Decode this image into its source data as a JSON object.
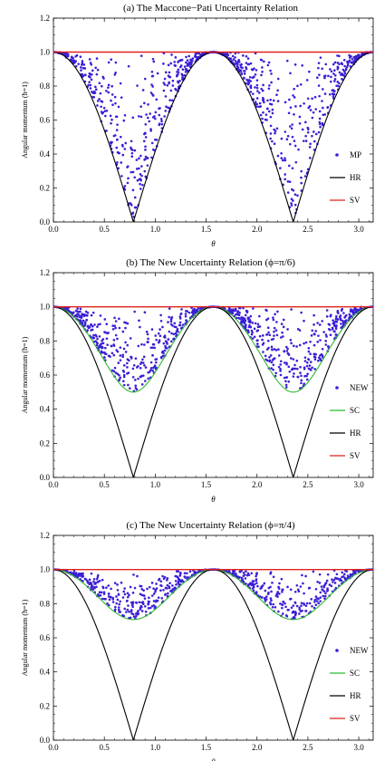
{
  "chart_data": [
    {
      "type": "scatter",
      "title": "(a) The Maccone−Pati Uncertainty Relation",
      "xlabel": "θ",
      "ylabel": "Angular momentum  (ħ=1)",
      "xlim": [
        0,
        3.1416
      ],
      "ylim": [
        0,
        1.2
      ],
      "x_ticks": [
        0.0,
        0.5,
        1.0,
        1.5,
        2.0,
        2.5,
        3.0
      ],
      "x_tick_labels": [
        "0.0",
        "0.5",
        "1.0",
        "1.5",
        "2.0",
        "2.5",
        "3.0"
      ],
      "y_ticks": [
        0.0,
        0.2,
        0.4,
        0.6,
        0.8,
        1.0,
        1.2
      ],
      "y_tick_labels": [
        "0.0",
        "0.2",
        "0.4",
        "0.6",
        "0.8",
        "1.0",
        "1.2"
      ],
      "legend_position": "bottom-right",
      "series": [
        {
          "name": "MP",
          "kind": "scatter",
          "color": "#3b1fd6",
          "lower_bound": "|cos 2θ|",
          "upper_bound": 1.0,
          "points_shown": 900
        },
        {
          "name": "HR",
          "kind": "line",
          "color": "#000000",
          "formula": "|cos 2θ|",
          "sample_points": [
            [
              0.0,
              1.0
            ],
            [
              0.393,
              0.707
            ],
            [
              0.785,
              0.0
            ],
            [
              1.178,
              0.707
            ],
            [
              1.571,
              1.0
            ],
            [
              1.963,
              0.707
            ],
            [
              2.356,
              0.0
            ],
            [
              2.749,
              0.707
            ],
            [
              3.142,
              1.0
            ]
          ]
        },
        {
          "name": "SV",
          "kind": "line",
          "color": "#e0201c",
          "formula": "1",
          "sample_points": [
            [
              0.0,
              1.0
            ],
            [
              3.142,
              1.0
            ]
          ]
        }
      ]
    },
    {
      "type": "scatter",
      "title": "(b) The New Uncertainty Relation (ϕ=π/6)",
      "xlabel": "θ",
      "ylabel": "Angular momentum  (ħ=1)",
      "xlim": [
        0,
        3.1416
      ],
      "ylim": [
        0,
        1.2
      ],
      "x_ticks": [
        0.0,
        0.5,
        1.0,
        1.5,
        2.0,
        2.5,
        3.0
      ],
      "x_tick_labels": [
        "0.0",
        "0.5",
        "1.0",
        "1.5",
        "2.0",
        "2.5",
        "3.0"
      ],
      "y_ticks": [
        0.0,
        0.2,
        0.4,
        0.6,
        0.8,
        1.0,
        1.2
      ],
      "y_tick_labels": [
        "0.0",
        "0.2",
        "0.4",
        "0.6",
        "0.8",
        "1.0",
        "1.2"
      ],
      "legend_position": "bottom-right",
      "series": [
        {
          "name": "NEW",
          "kind": "scatter",
          "color": "#3b1fd6",
          "lower_bound": "SC",
          "upper_bound": 1.0,
          "points_shown": 900
        },
        {
          "name": "SC",
          "kind": "line",
          "color": "#2eb82e",
          "formula": "sqrt(cos²2θ + sin²2θ·sin²ϕ)",
          "phi": "π/6",
          "minimum": 0.5,
          "sample_points": [
            [
              0.0,
              1.0
            ],
            [
              0.393,
              0.791
            ],
            [
              0.785,
              0.5
            ],
            [
              1.178,
              0.791
            ],
            [
              1.571,
              1.0
            ],
            [
              1.963,
              0.791
            ],
            [
              2.356,
              0.5
            ],
            [
              2.749,
              0.791
            ],
            [
              3.142,
              1.0
            ]
          ]
        },
        {
          "name": "HR",
          "kind": "line",
          "color": "#000000",
          "formula": "|cos 2θ|",
          "sample_points": [
            [
              0.0,
              1.0
            ],
            [
              0.393,
              0.707
            ],
            [
              0.785,
              0.0
            ],
            [
              1.178,
              0.707
            ],
            [
              1.571,
              1.0
            ],
            [
              1.963,
              0.707
            ],
            [
              2.356,
              0.0
            ],
            [
              2.749,
              0.707
            ],
            [
              3.142,
              1.0
            ]
          ]
        },
        {
          "name": "SV",
          "kind": "line",
          "color": "#e0201c",
          "formula": "1",
          "sample_points": [
            [
              0.0,
              1.0
            ],
            [
              3.142,
              1.0
            ]
          ]
        }
      ]
    },
    {
      "type": "scatter",
      "title": "(c) The New Uncertainty Relation (ϕ=π/4)",
      "xlabel": "θ",
      "ylabel": "Angular momentum  (ħ=1)",
      "xlim": [
        0,
        3.1416
      ],
      "ylim": [
        0,
        1.2
      ],
      "x_ticks": [
        0.0,
        0.5,
        1.0,
        1.5,
        2.0,
        2.5,
        3.0
      ],
      "x_tick_labels": [
        "0.0",
        "0.5",
        "1.0",
        "1.5",
        "2.0",
        "2.5",
        "3.0"
      ],
      "y_ticks": [
        0.0,
        0.2,
        0.4,
        0.6,
        0.8,
        1.0,
        1.2
      ],
      "y_tick_labels": [
        "0.0",
        "0.2",
        "0.4",
        "0.6",
        "0.8",
        "1.0",
        "1.2"
      ],
      "legend_position": "bottom-right",
      "series": [
        {
          "name": "NEW",
          "kind": "scatter",
          "color": "#3b1fd6",
          "lower_bound": "SC",
          "upper_bound": 1.0,
          "points_shown": 700
        },
        {
          "name": "SC",
          "kind": "line",
          "color": "#2eb82e",
          "formula": "sqrt(cos²2θ + sin²2θ·sin²ϕ)",
          "phi": "π/4",
          "minimum": 0.707,
          "sample_points": [
            [
              0.0,
              1.0
            ],
            [
              0.393,
              0.866
            ],
            [
              0.785,
              0.707
            ],
            [
              1.178,
              0.866
            ],
            [
              1.571,
              1.0
            ],
            [
              1.963,
              0.866
            ],
            [
              2.356,
              0.707
            ],
            [
              2.749,
              0.866
            ],
            [
              3.142,
              1.0
            ]
          ]
        },
        {
          "name": "HR",
          "kind": "line",
          "color": "#000000",
          "formula": "|cos 2θ|",
          "sample_points": [
            [
              0.0,
              1.0
            ],
            [
              0.393,
              0.707
            ],
            [
              0.785,
              0.0
            ],
            [
              1.178,
              0.707
            ],
            [
              1.571,
              1.0
            ],
            [
              1.963,
              0.707
            ],
            [
              2.356,
              0.0
            ],
            [
              2.749,
              0.707
            ],
            [
              3.142,
              1.0
            ]
          ]
        },
        {
          "name": "SV",
          "kind": "line",
          "color": "#e0201c",
          "formula": "1",
          "sample_points": [
            [
              0.0,
              1.0
            ],
            [
              3.142,
              1.0
            ]
          ]
        }
      ]
    }
  ]
}
